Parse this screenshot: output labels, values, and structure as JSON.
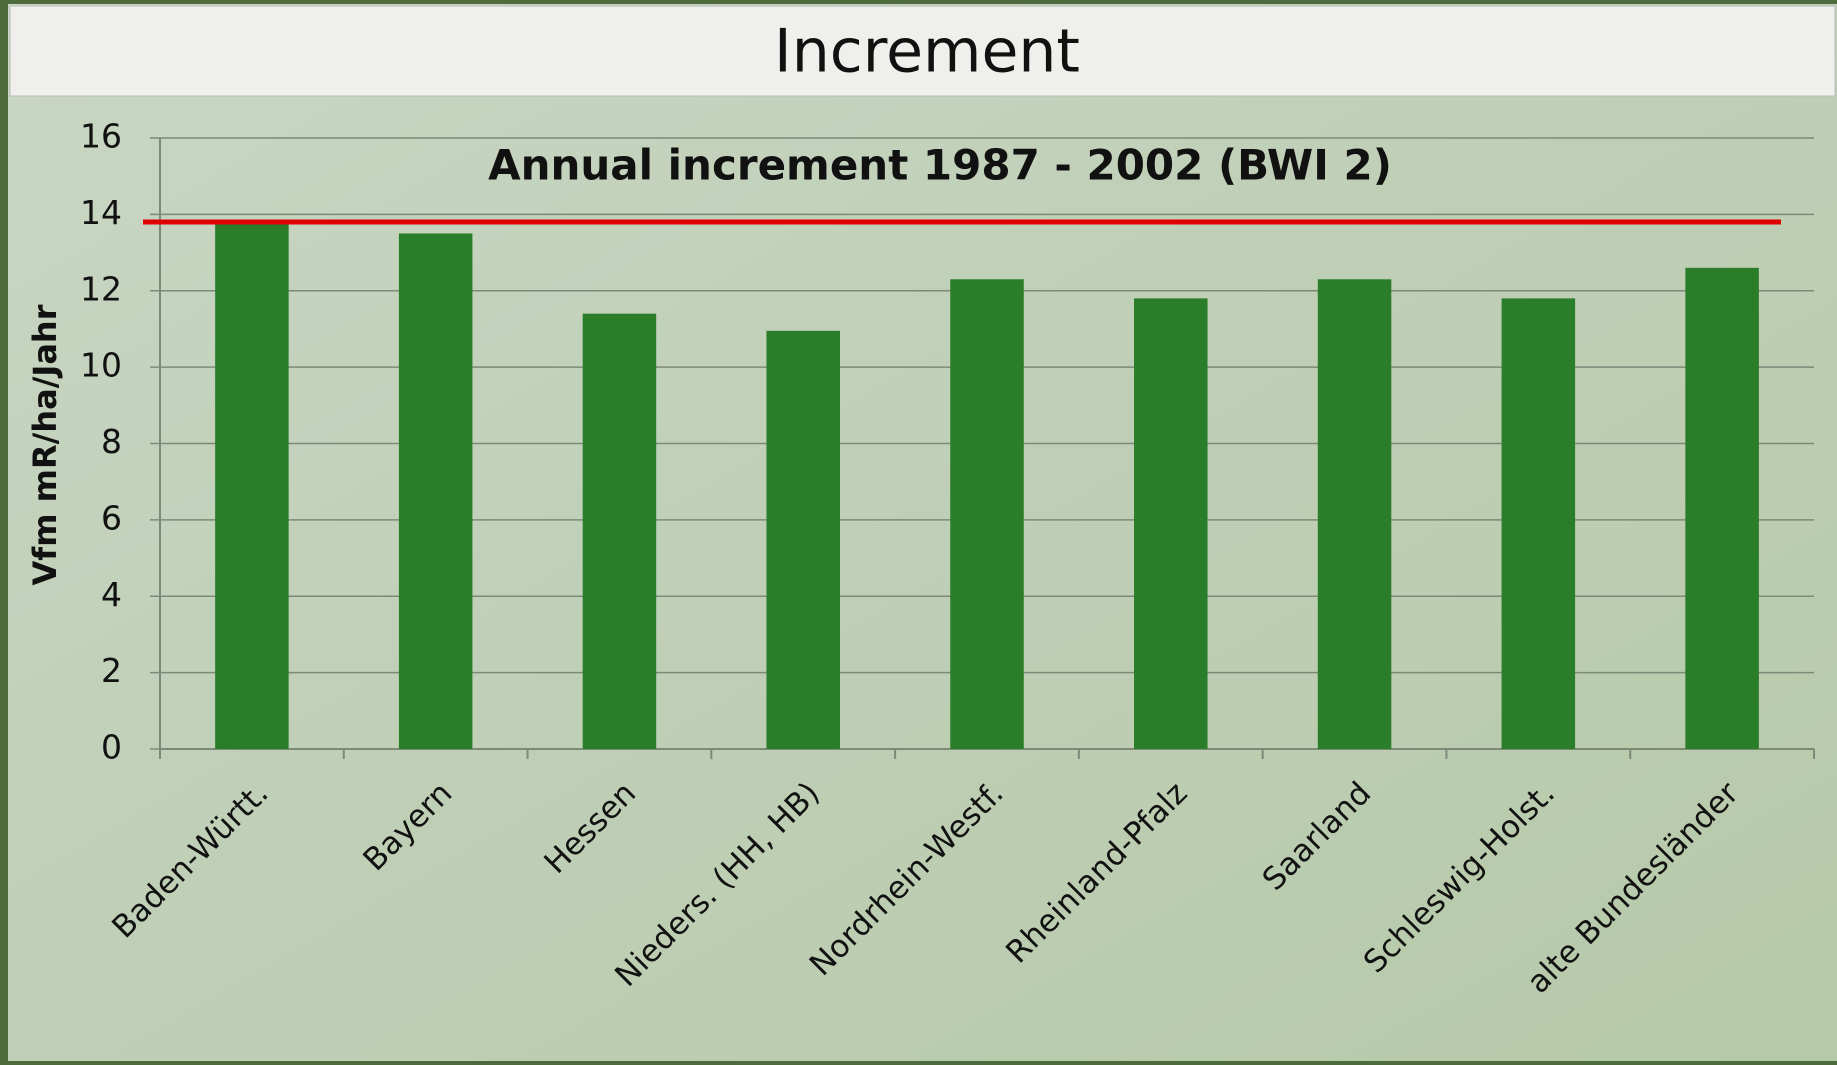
{
  "chart_data": {
    "type": "bar",
    "title": "Increment",
    "subtitle": "Annual increment 1987 - 2002 (BWI 2)",
    "y_label": "Vfm mR/ha/Jahr",
    "categories": [
      "Baden-Württ.",
      "Bayern",
      "Hessen",
      "Nieders. (HH, HB)",
      "Nordrhein-Westf.",
      "Rheinland-Pfalz",
      "Saarland",
      "Schleswig-Holst.",
      "alte Bundesländer"
    ],
    "values": [
      13.8,
      13.5,
      11.4,
      10.95,
      12.3,
      11.8,
      12.3,
      11.8,
      12.6
    ],
    "color": "#2a7e2a",
    "reference_line": {
      "value": 13.8,
      "color": "#e00000"
    },
    "ylim": [
      0,
      16
    ],
    "yticks": [
      0,
      2,
      4,
      6,
      8,
      10,
      12,
      14,
      16
    ],
    "grid": true
  }
}
